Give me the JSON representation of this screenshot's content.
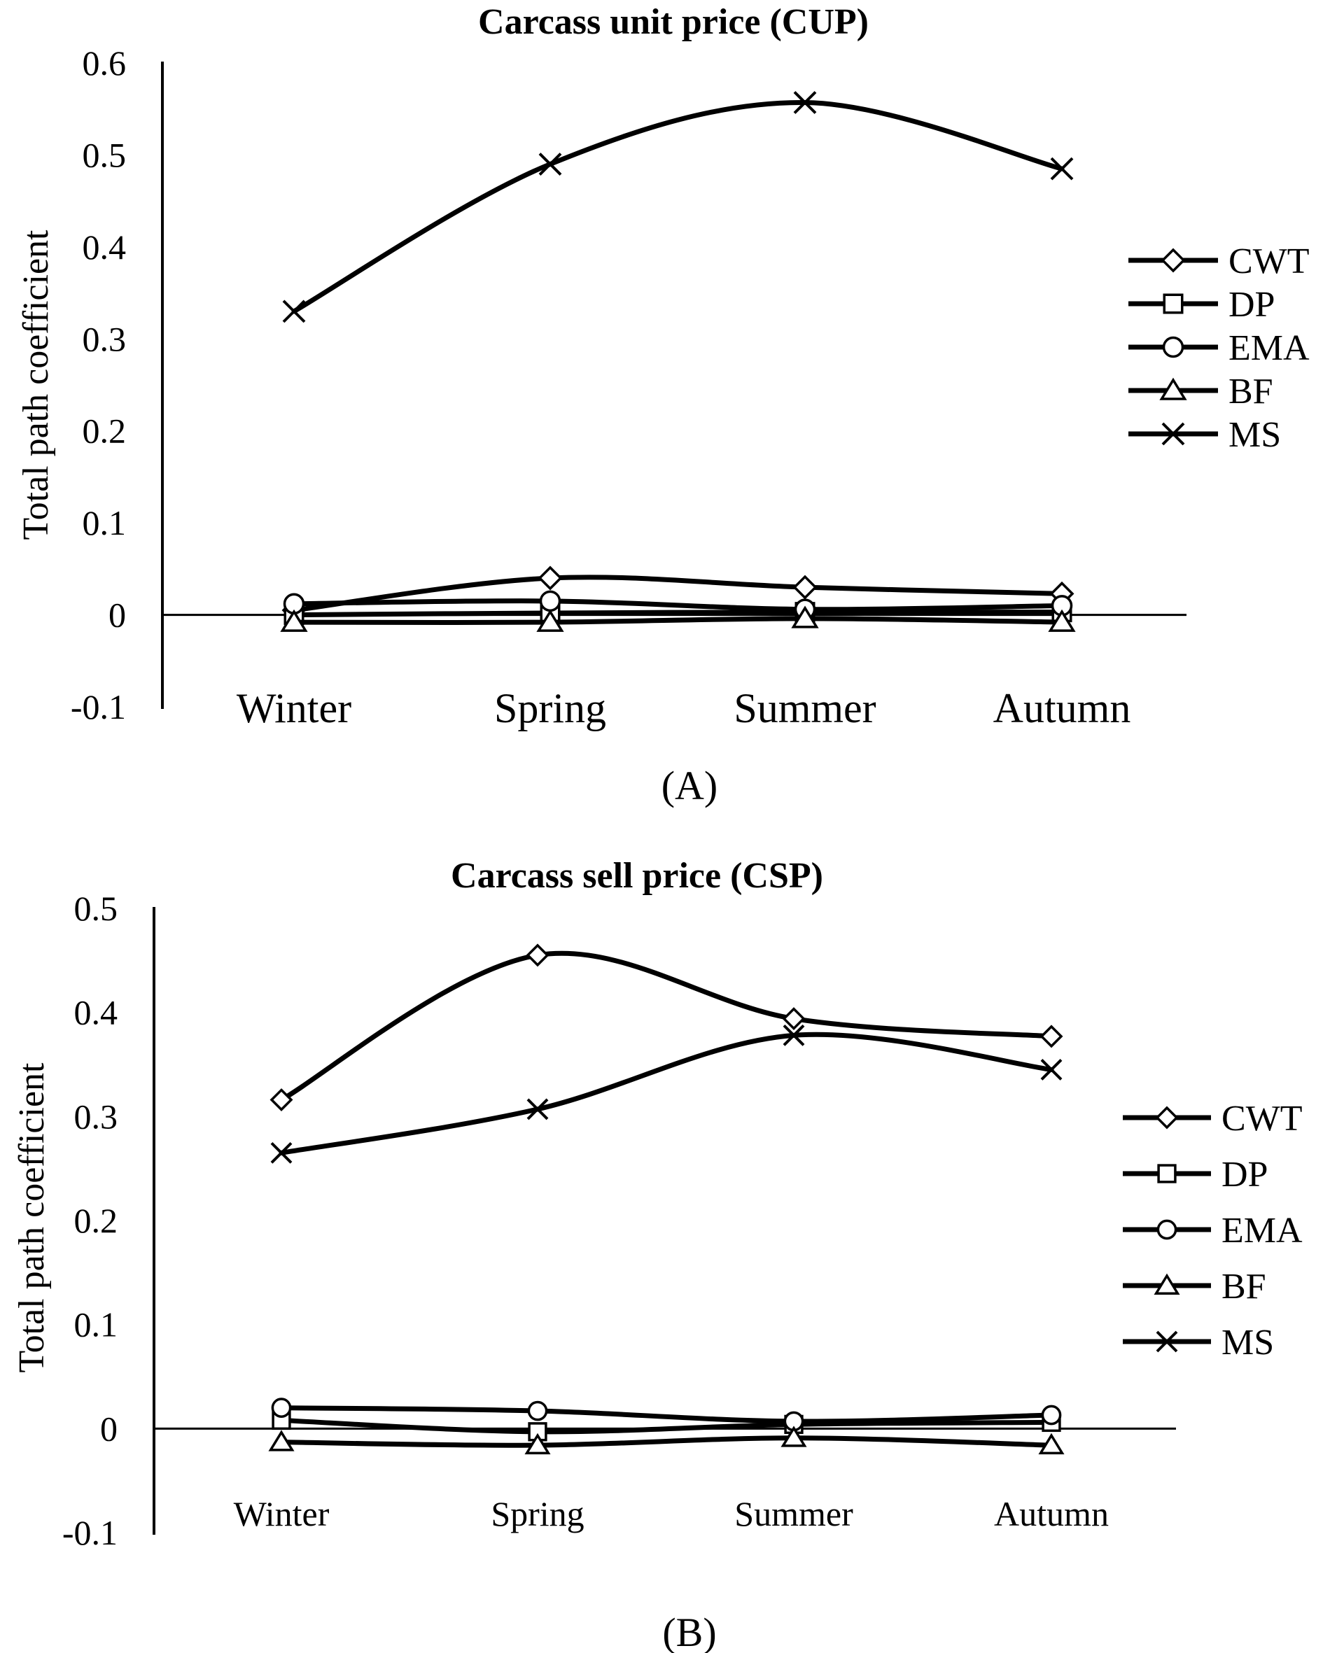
{
  "chart_data": [
    {
      "type": "line",
      "panel_label": "(A)",
      "title": "Carcass unit price (CUP)",
      "xlabel": "",
      "ylabel": "Total path coefficient",
      "categories": [
        "Winter",
        "Spring",
        "Summer",
        "Autumn"
      ],
      "ylim": [
        -0.1,
        0.6
      ],
      "yticks": [
        "0.6",
        "0.5",
        "0.4",
        "0.3",
        "0.2",
        "0.1",
        "0",
        "-0.1"
      ],
      "legend_position": "right",
      "series": [
        {
          "name": "CWT",
          "marker": "diamond",
          "values": [
            0.005,
            0.04,
            0.03,
            0.023
          ]
        },
        {
          "name": "DP",
          "marker": "square",
          "values": [
            0.0,
            0.002,
            0.003,
            0.003
          ]
        },
        {
          "name": "EMA",
          "marker": "circle",
          "values": [
            0.012,
            0.015,
            0.006,
            0.01
          ]
        },
        {
          "name": "BF",
          "marker": "triangle",
          "values": [
            -0.008,
            -0.008,
            -0.004,
            -0.008
          ]
        },
        {
          "name": "MS",
          "marker": "x",
          "values": [
            0.33,
            0.49,
            0.557,
            0.485
          ]
        }
      ]
    },
    {
      "type": "line",
      "panel_label": "(B)",
      "title": "Carcass sell price (CSP)",
      "xlabel": "",
      "ylabel": "Total path coefficient",
      "categories": [
        "Winter",
        "Spring",
        "Summer",
        "Autumn"
      ],
      "ylim": [
        -0.1,
        0.5
      ],
      "yticks": [
        "0.5",
        "0.4",
        "0.3",
        "0.2",
        "0.1",
        "0",
        "-0.1"
      ],
      "legend_position": "right",
      "series": [
        {
          "name": "CWT",
          "marker": "diamond",
          "values": [
            0.316,
            0.455,
            0.394,
            0.377
          ]
        },
        {
          "name": "DP",
          "marker": "square",
          "values": [
            0.008,
            -0.003,
            0.004,
            0.006
          ]
        },
        {
          "name": "EMA",
          "marker": "circle",
          "values": [
            0.02,
            0.017,
            0.007,
            0.013
          ]
        },
        {
          "name": "BF",
          "marker": "triangle",
          "values": [
            -0.013,
            -0.016,
            -0.009,
            -0.016
          ]
        },
        {
          "name": "MS",
          "marker": "x",
          "values": [
            0.265,
            0.307,
            0.378,
            0.345
          ]
        }
      ]
    }
  ]
}
